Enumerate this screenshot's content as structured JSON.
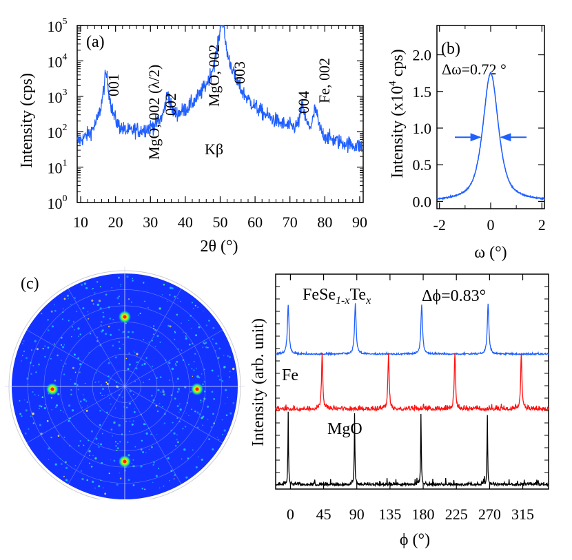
{
  "colors": {
    "blue": "#1f5fff",
    "red": "#ff1111",
    "black": "#000000",
    "polar_bg": "#1432ff",
    "spot_hot": "#ff2200",
    "speckle": "#22c8ff"
  },
  "chart_data": [
    {
      "panel": "(a)",
      "type": "line",
      "xlabel": "2θ (°)",
      "ylabel": "Intensity (cps)",
      "xlim": [
        9,
        91
      ],
      "ylim": [
        1,
        100000
      ],
      "yscale": "log",
      "xticks": [
        10,
        20,
        30,
        40,
        50,
        60,
        70,
        80,
        90
      ],
      "yticks": [
        {
          "value": 1,
          "base": "10",
          "exp": "0"
        },
        {
          "value": 10,
          "base": "10",
          "exp": "1"
        },
        {
          "value": 100,
          "base": "10",
          "exp": "2"
        },
        {
          "value": 1000,
          "base": "10",
          "exp": "3"
        },
        {
          "value": 10000,
          "base": "10",
          "exp": "4"
        },
        {
          "value": 100000,
          "base": "10",
          "exp": "5"
        }
      ],
      "series": [
        {
          "color": "#1f5fff",
          "baseline": 8,
          "peaks": [
            {
              "x": 17.3,
              "y": 4000
            },
            {
              "x": 25.5,
              "y": 12
            },
            {
              "x": 35.0,
              "y": 1100
            },
            {
              "x": 45.5,
              "y": 18
            },
            {
              "x": 50.5,
              "y": 150000
            },
            {
              "x": 53.2,
              "y": 1300
            },
            {
              "x": 73.6,
              "y": 430
            },
            {
              "x": 77.3,
              "y": 350
            }
          ]
        }
      ],
      "annotations": [
        {
          "text": "001",
          "x": 17.3
        },
        {
          "text": "MgO, 002 (λ/2)",
          "x": 25.5
        },
        {
          "text": "002",
          "x": 35.0
        },
        {
          "text": "Kβ",
          "x": 45.0
        },
        {
          "text": "MgO, 002",
          "x": 49.5
        },
        {
          "text": "003",
          "x": 53.6
        },
        {
          "text": "004",
          "x": 73.6
        },
        {
          "text": "Fe, 002",
          "x": 77.5
        }
      ]
    },
    {
      "panel": "(b)",
      "type": "line",
      "xlabel": "ω (°)",
      "ylabel_main": "Intensity (x10",
      "ylabel_exp": "4",
      "ylabel_tail": " cps)",
      "xlim": [
        -2.1,
        2.1
      ],
      "ylim": [
        -0.1,
        2.4
      ],
      "xticks": [
        -2,
        0,
        2
      ],
      "yticks": [
        0.0,
        0.5,
        1.0,
        1.5,
        2.0
      ],
      "annotation": "Δω=0.72 °",
      "fwhm": 0.72,
      "series": [
        {
          "color": "#1f5fff",
          "center": 0.0,
          "peak": 1.75
        }
      ]
    },
    {
      "panel": "(c)",
      "type": "polar_heatmap",
      "spots_phi_deg": [
        0,
        90,
        180,
        270
      ],
      "rings": 6
    },
    {
      "type": "line",
      "xlabel": "ϕ (°)",
      "ylabel": "Intensity (arb. unit)",
      "xlim": [
        -20,
        350
      ],
      "xticks": [
        0,
        45,
        90,
        135,
        180,
        225,
        270,
        315
      ],
      "annotation": "Δϕ=0.83°",
      "series": [
        {
          "name": "FeSe",
          "sub": "1-x",
          "mid": "Te",
          "sub2": "x",
          "color": "#1f5fff",
          "peaks": [
            -3,
            88,
            178,
            268
          ]
        },
        {
          "name": "Fe",
          "color": "#ff1111",
          "peaks": [
            43,
            133,
            223,
            313
          ]
        },
        {
          "name": "MgO",
          "color": "#000000",
          "peaks": [
            -3,
            87,
            177,
            267
          ]
        }
      ]
    }
  ]
}
